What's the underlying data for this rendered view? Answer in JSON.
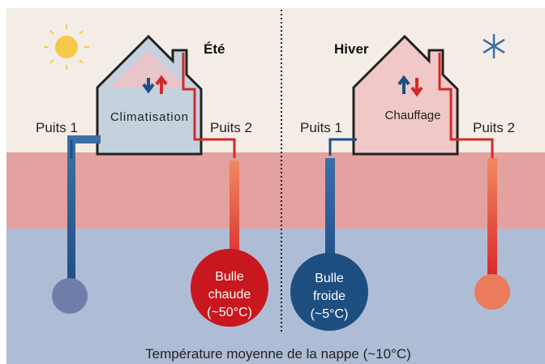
{
  "summer": {
    "season": "Été",
    "house_label": "Climatisation",
    "well1": "Puits 1",
    "well2": "Puits 2",
    "bubble": [
      "Bulle",
      "chaude",
      "(~50°C)"
    ]
  },
  "winter": {
    "season": "Hiver",
    "house_label": "Chauffage",
    "well1": "Puits 1",
    "well2": "Puits 2",
    "bubble": [
      "Bulle",
      "froide",
      "(~5°C)"
    ]
  },
  "caption": "Température moyenne de la nappe (~10°C)"
}
